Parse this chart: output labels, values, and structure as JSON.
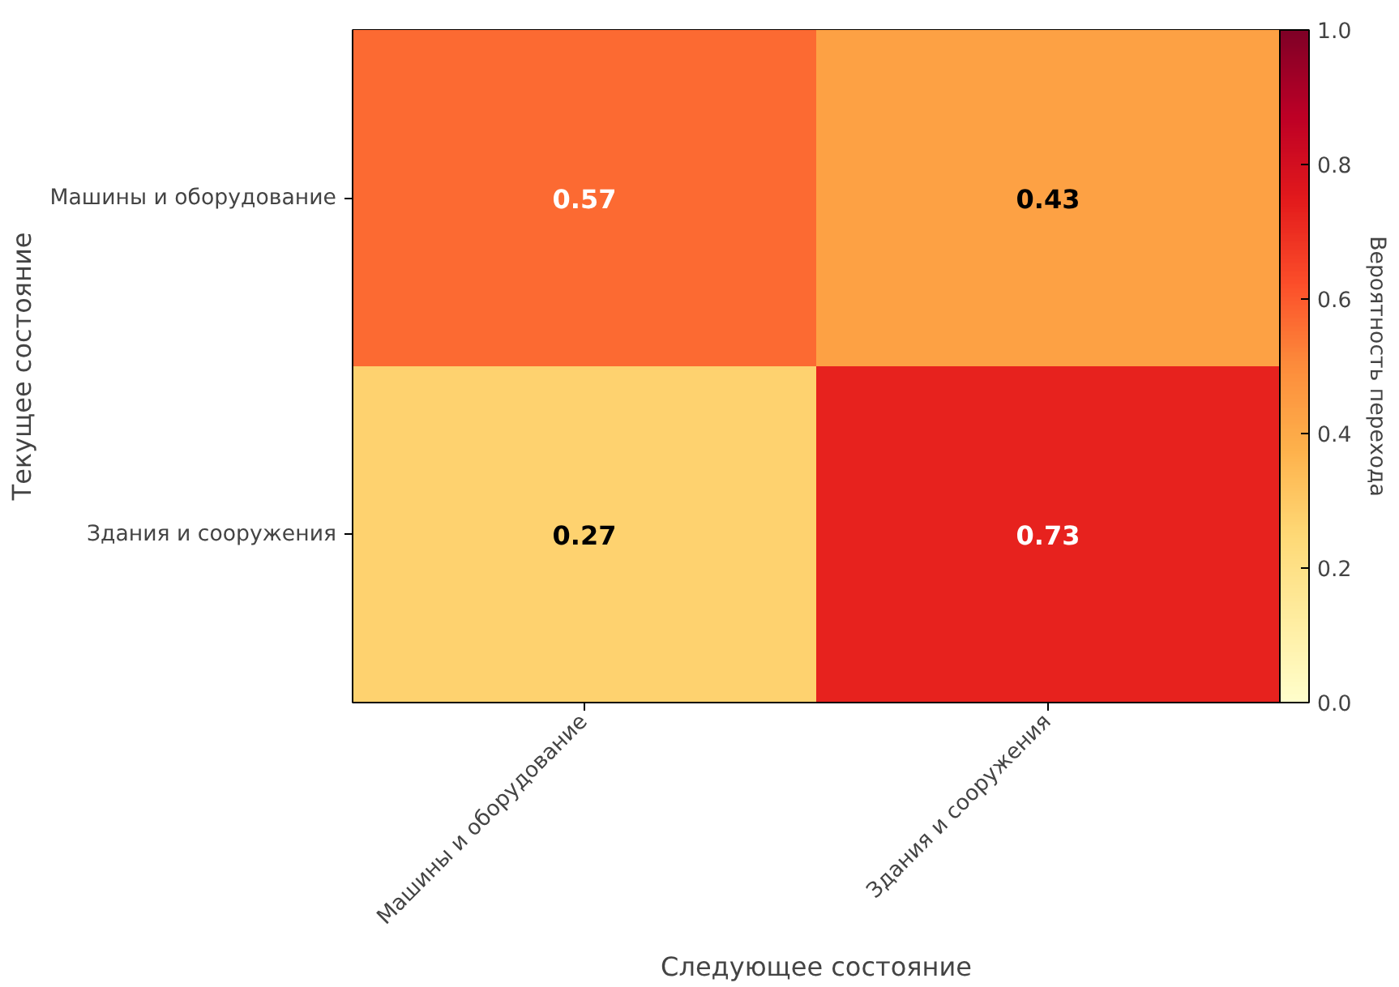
{
  "chart_data": {
    "type": "heatmap",
    "xlabel": "Следующее состояние",
    "ylabel": "Текущее состояние",
    "clabel": "Вероятность перехода",
    "categories": [
      "Машины и оборудование",
      "Здания и сооружения"
    ],
    "y_categories": [
      "Машины и оборудование",
      "Здания и сооружения"
    ],
    "cells": [
      [
        0.57,
        0.43
      ],
      [
        0.27,
        0.73
      ]
    ],
    "clim": [
      0.0,
      1.0
    ],
    "cticks": [
      {
        "value": 0.0,
        "label": "0.0"
      },
      {
        "value": 0.2,
        "label": "0.2"
      },
      {
        "value": 0.4,
        "label": "0.4"
      },
      {
        "value": 0.6,
        "label": "0.6"
      },
      {
        "value": 0.8,
        "label": "0.8"
      },
      {
        "value": 1.0,
        "label": "1.0"
      }
    ],
    "data_labels": true
  }
}
